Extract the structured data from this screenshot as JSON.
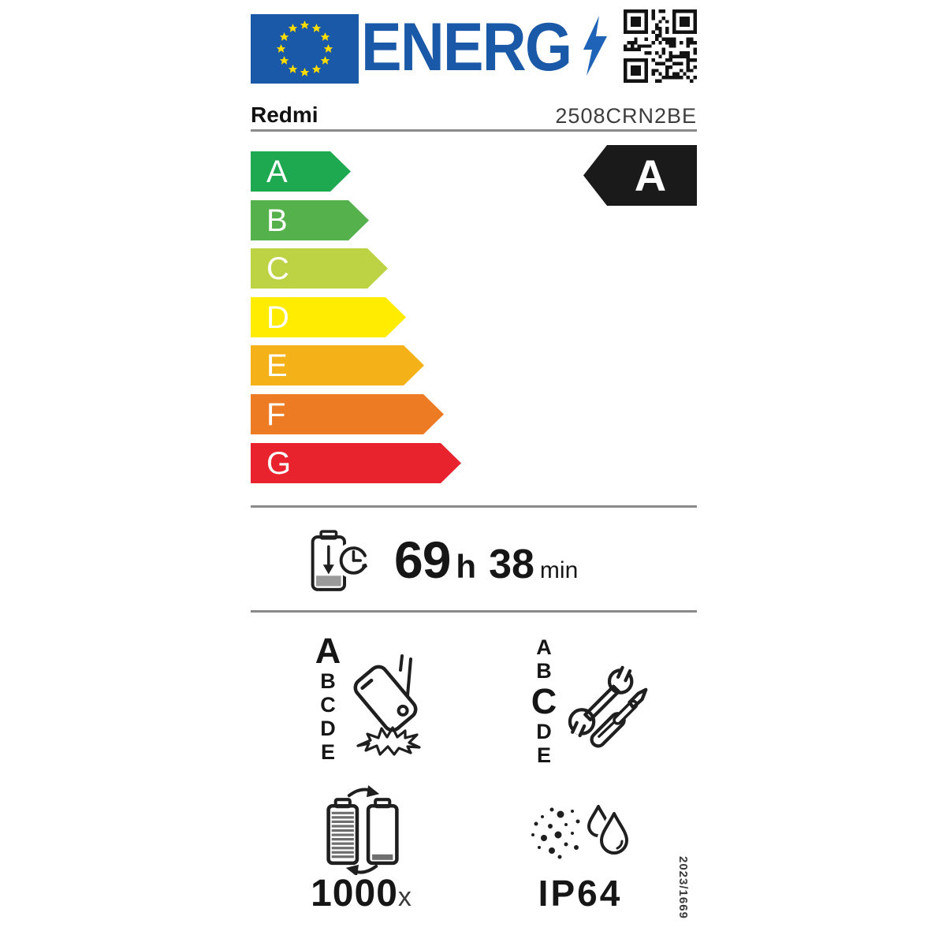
{
  "label_header": {
    "logo_text": "ENERG",
    "colors": {
      "eu_blue": "#1a58a8",
      "star_yellow": "#ffdd00"
    }
  },
  "product": {
    "brand": "Redmi",
    "model": "2508CRN2BE"
  },
  "efficiency_scale": {
    "rated_class": "A",
    "rated_arrow_color": "#1a1a1a",
    "classes": [
      {
        "label": "A",
        "color": "#1ea850"
      },
      {
        "label": "B",
        "color": "#55b14b"
      },
      {
        "label": "C",
        "color": "#bdd344"
      },
      {
        "label": "D",
        "color": "#ffec00"
      },
      {
        "label": "E",
        "color": "#f4b118"
      },
      {
        "label": "F",
        "color": "#ec7b23"
      },
      {
        "label": "G",
        "color": "#e8232e"
      }
    ]
  },
  "battery_endurance": {
    "hours": "69",
    "hours_unit": "h",
    "minutes": "38",
    "minutes_unit": "min"
  },
  "drop_resistance": {
    "rated": "A",
    "classes": [
      "A",
      "B",
      "C",
      "D",
      "E"
    ]
  },
  "repairability": {
    "rated": "C",
    "classes": [
      "A",
      "B",
      "C",
      "D",
      "E"
    ]
  },
  "battery_cycles": {
    "value": "1000",
    "unit": "x"
  },
  "ingress_protection": {
    "rating": "IP64"
  },
  "regulation_number": "2023/1669"
}
